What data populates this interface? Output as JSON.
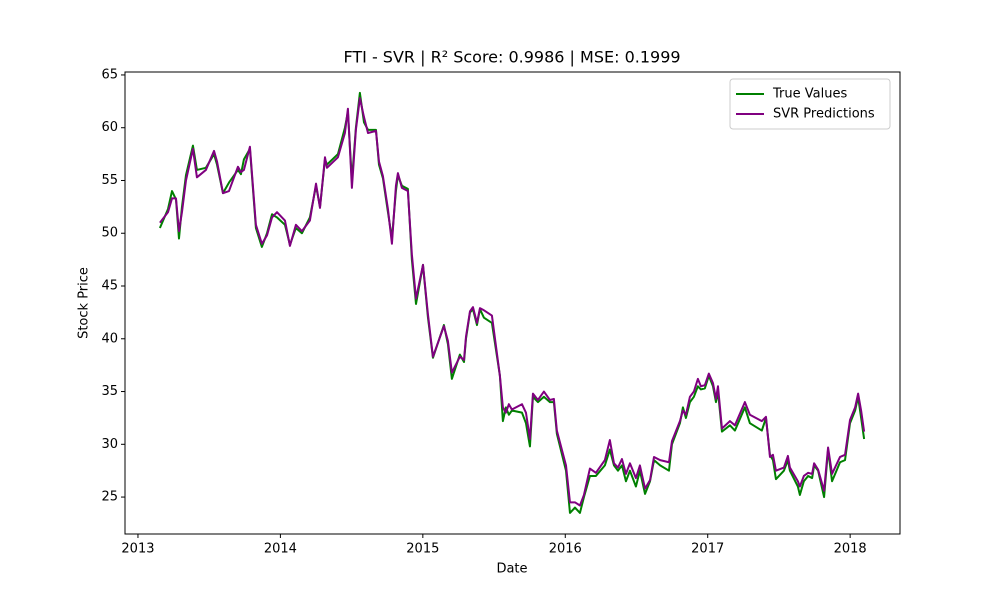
{
  "chart_data": {
    "type": "line",
    "title": "FTI - SVR | R² Score: 0.9986 | MSE: 0.1999",
    "x_label": "Date",
    "y_label": "Stock Price",
    "x": [
      2013.154,
      2013.211,
      2013.239,
      2013.267,
      2013.288,
      2013.309,
      2013.337,
      2013.386,
      2013.414,
      2013.477,
      2013.534,
      2013.555,
      2013.597,
      2013.639,
      2013.702,
      2013.723,
      2013.744,
      2013.786,
      2013.828,
      2013.87,
      2013.906,
      2013.941,
      2013.976,
      2014.032,
      2014.067,
      2014.109,
      2014.151,
      2014.207,
      2014.25,
      2014.278,
      2014.313,
      2014.327,
      2014.404,
      2014.453,
      2014.474,
      2014.502,
      2014.53,
      2014.558,
      2014.587,
      2014.615,
      2014.671,
      2014.692,
      2014.72,
      2014.755,
      2014.783,
      2014.811,
      2014.825,
      2014.853,
      2014.895,
      2014.923,
      2014.952,
      2015.001,
      2015.036,
      2015.071,
      2015.148,
      2015.176,
      2015.204,
      2015.26,
      2015.289,
      2015.303,
      2015.331,
      2015.352,
      2015.38,
      2015.401,
      2015.429,
      2015.485,
      2015.541,
      2015.562,
      2015.583,
      2015.604,
      2015.625,
      2015.696,
      2015.724,
      2015.752,
      2015.773,
      2015.808,
      2015.85,
      2015.892,
      2015.92,
      2015.941,
      2016.005,
      2016.033,
      2016.068,
      2016.103,
      2016.131,
      2016.173,
      2016.215,
      2016.278,
      2016.313,
      2016.342,
      2016.37,
      2016.398,
      2016.426,
      2016.454,
      2016.496,
      2016.524,
      2016.56,
      2016.595,
      2016.623,
      2016.666,
      2016.728,
      2016.749,
      2016.805,
      2016.826,
      2016.847,
      2016.875,
      2016.903,
      2016.931,
      2016.952,
      2016.98,
      2017.008,
      2017.037,
      2017.058,
      2017.072,
      2017.1,
      2017.156,
      2017.191,
      2017.261,
      2017.296,
      2017.38,
      2017.409,
      2017.437,
      2017.458,
      2017.479,
      2017.535,
      2017.563,
      2017.577,
      2017.633,
      2017.647,
      2017.675,
      2017.705,
      2017.733,
      2017.747,
      2017.775,
      2017.817,
      2017.845,
      2017.873,
      2017.929,
      2017.964,
      2017.999,
      2018.035,
      2018.056,
      2018.077,
      2018.098
    ],
    "series": [
      {
        "name": "True Values",
        "color": "#008000",
        "values": [
          50.5,
          52.3,
          54.0,
          53.2,
          49.5,
          52.5,
          55.5,
          58.3,
          56.0,
          56.2,
          57.5,
          56.5,
          53.8,
          54.8,
          56.0,
          55.6,
          57.0,
          58.0,
          50.5,
          48.7,
          50.0,
          51.8,
          51.5,
          50.8,
          48.9,
          50.5,
          50.0,
          51.5,
          54.5,
          52.5,
          57.0,
          56.5,
          57.5,
          60.0,
          61.5,
          55.0,
          60.0,
          63.3,
          60.5,
          59.8,
          59.8,
          56.5,
          55.2,
          52.0,
          49.5,
          54.0,
          55.5,
          54.5,
          54.2,
          47.5,
          43.3,
          47.0,
          42.0,
          38.2,
          41.3,
          39.5,
          36.2,
          38.5,
          37.8,
          40.0,
          42.5,
          42.8,
          41.3,
          42.8,
          42.0,
          41.5,
          36.5,
          32.2,
          33.5,
          32.8,
          33.2,
          33.0,
          32.0,
          29.8,
          34.5,
          34.0,
          34.5,
          34.0,
          34.0,
          31.0,
          27.5,
          23.5,
          24.0,
          23.5,
          25.0,
          27.0,
          27.0,
          28.0,
          29.5,
          28.0,
          27.5,
          28.0,
          26.5,
          27.5,
          26.0,
          27.5,
          25.3,
          26.5,
          28.5,
          28.0,
          27.5,
          30.0,
          32.0,
          33.5,
          32.5,
          34.0,
          34.5,
          35.5,
          35.2,
          35.3,
          36.5,
          35.5,
          34.0,
          35.0,
          31.2,
          31.8,
          31.3,
          33.5,
          32.0,
          31.3,
          32.5,
          29.0,
          28.5,
          26.7,
          27.5,
          28.5,
          27.5,
          26.0,
          25.2,
          26.5,
          27.0,
          26.8,
          28.0,
          27.5,
          25.0,
          29.5,
          26.5,
          28.3,
          28.5,
          32.0,
          33.2,
          34.5,
          32.5,
          30.5
        ]
      },
      {
        "name": "SVR Predictions",
        "color": "#800080",
        "values": [
          51.0,
          52.0,
          53.3,
          53.3,
          50.2,
          52.0,
          55.0,
          58.0,
          55.3,
          56.0,
          57.8,
          56.8,
          53.8,
          54.0,
          56.3,
          55.8,
          56.0,
          58.2,
          50.8,
          49.0,
          49.8,
          51.5,
          52.0,
          51.2,
          48.8,
          50.8,
          50.2,
          51.2,
          54.7,
          52.4,
          57.2,
          56.2,
          57.2,
          59.5,
          61.8,
          54.3,
          59.8,
          62.8,
          61.0,
          59.5,
          59.7,
          56.8,
          55.4,
          52.3,
          49.0,
          54.5,
          55.7,
          54.3,
          54.0,
          48.0,
          43.8,
          47.0,
          42.3,
          38.3,
          41.2,
          39.8,
          36.8,
          38.3,
          38.0,
          40.2,
          42.6,
          43.0,
          41.5,
          42.9,
          42.7,
          42.2,
          36.5,
          33.5,
          33.0,
          33.8,
          33.3,
          33.8,
          33.0,
          30.5,
          34.8,
          34.2,
          35.0,
          34.2,
          34.3,
          31.3,
          28.0,
          24.5,
          24.5,
          24.2,
          25.2,
          27.7,
          27.3,
          28.5,
          30.4,
          28.2,
          27.8,
          28.6,
          27.2,
          28.2,
          26.8,
          28.0,
          25.8,
          26.6,
          28.8,
          28.5,
          28.3,
          30.3,
          32.2,
          33.2,
          32.8,
          34.5,
          35.0,
          36.2,
          35.5,
          35.6,
          36.7,
          35.8,
          34.3,
          35.5,
          31.5,
          32.2,
          31.8,
          34.0,
          32.8,
          32.2,
          32.6,
          28.8,
          29.0,
          27.5,
          27.8,
          28.9,
          27.8,
          26.5,
          26.0,
          27.0,
          27.3,
          27.2,
          28.2,
          27.6,
          25.6,
          29.7,
          27.2,
          28.8,
          29.0,
          32.3,
          33.5,
          34.8,
          33.2,
          31.2
        ]
      }
    ],
    "xlim": [
      2012.909,
      2018.35
    ],
    "xticks": [
      2013,
      2014,
      2015,
      2016,
      2017,
      2018
    ],
    "ylim": [
      21.5,
      65.28
    ],
    "yticks": [
      25,
      30,
      35,
      40,
      45,
      50,
      55,
      60,
      65
    ],
    "legend": "upper right"
  }
}
